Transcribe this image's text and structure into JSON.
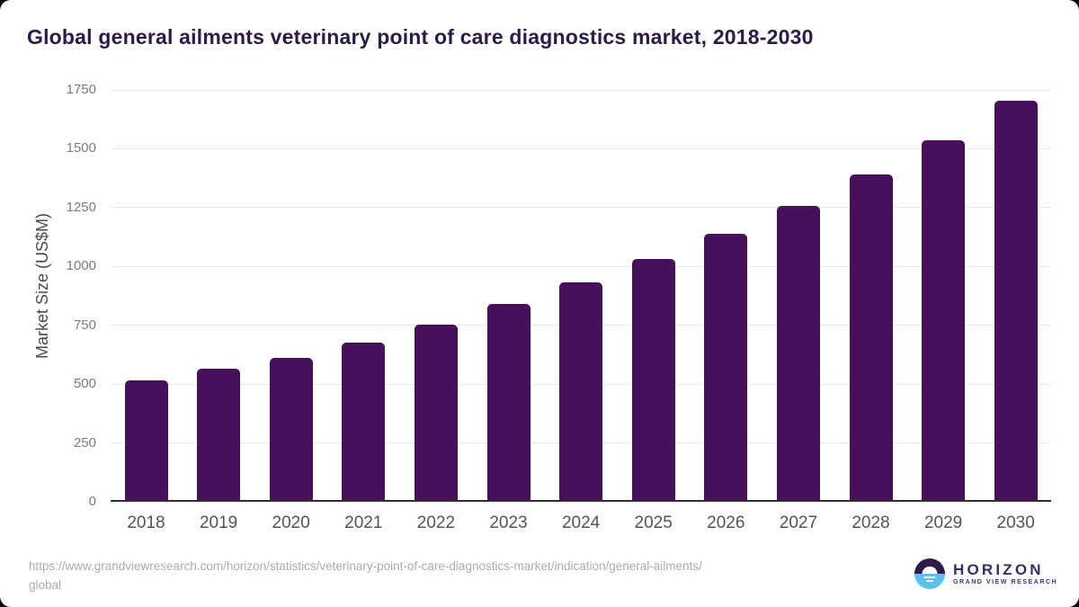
{
  "chart_data": {
    "type": "bar",
    "title": "Global general ailments veterinary point of care diagnostics market, 2018-2030",
    "categories": [
      "2018",
      "2019",
      "2020",
      "2021",
      "2022",
      "2023",
      "2024",
      "2025",
      "2026",
      "2027",
      "2028",
      "2029",
      "2030"
    ],
    "values": [
      514,
      567,
      612,
      678,
      753,
      839,
      934,
      1033,
      1137,
      1258,
      1392,
      1536,
      1704
    ],
    "xlabel": "",
    "ylabel": "Market Size (US$M)",
    "ylim": [
      0,
      1750
    ],
    "yticks": [
      0,
      250,
      500,
      750,
      1000,
      1250,
      1500,
      1750
    ],
    "grid": true,
    "legend_position": "none",
    "bar_color": "#48105a",
    "title_color": "#2e1a47",
    "gridline_color": "#e9e9e9",
    "axis_line_color": "#2f2f2f"
  },
  "source": {
    "url_line1": "https://www.grandviewresearch.com/horizon/statistics/veterinary-point-of-care-diagnostics-market/indication/general-ailments/",
    "url_line2": "global"
  },
  "branding": {
    "name": "HORIZON",
    "subtitle": "GRAND VIEW RESEARCH",
    "logo_purple": "#2e1a47",
    "logo_blue": "#58c1ef",
    "text_purple": "#3d2a66"
  }
}
